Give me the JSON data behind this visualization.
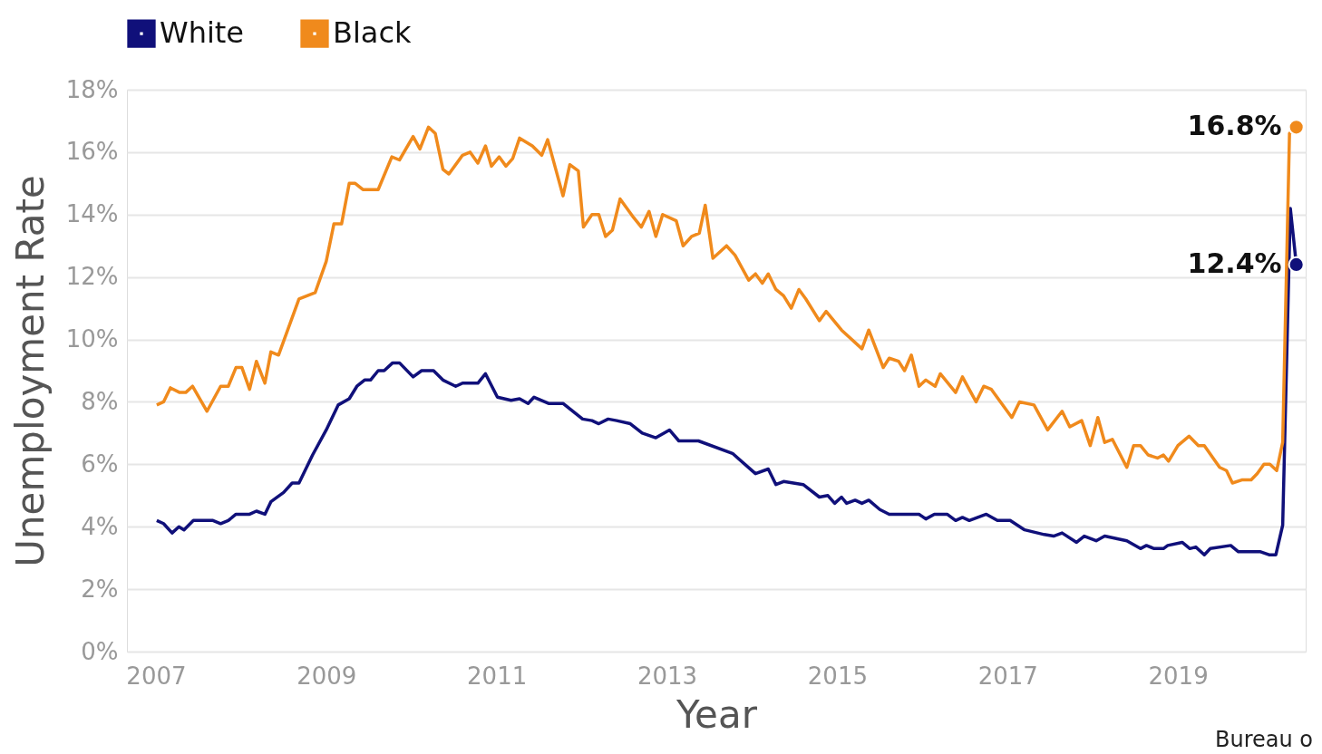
{
  "chart_data": {
    "type": "line",
    "xlabel": "Year",
    "ylabel": "Unemployment Rate",
    "xlim": [
      2006.66,
      2020.5
    ],
    "xticks": [
      2007,
      2009,
      2011,
      2013,
      2015,
      2017,
      2019
    ],
    "ylim": [
      0,
      18
    ],
    "yticks": [
      {
        "value": 0,
        "label": "0%"
      },
      {
        "value": 2,
        "label": "2%"
      },
      {
        "value": 4,
        "label": "4%"
      },
      {
        "value": 6,
        "label": "6%"
      },
      {
        "value": 8,
        "label": "8%"
      },
      {
        "value": 10,
        "label": "10%"
      },
      {
        "value": 12,
        "label": "12%"
      },
      {
        "value": 14,
        "label": "14%"
      },
      {
        "value": 16,
        "label": "16%"
      },
      {
        "value": 18,
        "label": "18%"
      }
    ],
    "grid": "y",
    "legend": "top",
    "marker": "none",
    "line_style": "solid",
    "series": [
      {
        "name": "White",
        "color": "#10107a",
        "x": [
          2007.01,
          2007.09,
          2007.19,
          2007.27,
          2007.33,
          2007.44,
          2007.53,
          2007.67,
          2007.76,
          2007.85,
          2007.94,
          2008.1,
          2008.18,
          2008.28,
          2008.35,
          2008.5,
          2008.6,
          2008.68,
          2008.84,
          2009.0,
          2009.14,
          2009.27,
          2009.36,
          2009.45,
          2009.52,
          2009.61,
          2009.68,
          2009.78,
          2009.86,
          2010.02,
          2010.12,
          2010.26,
          2010.37,
          2010.52,
          2010.6,
          2010.78,
          2010.87,
          2011.01,
          2011.17,
          2011.27,
          2011.37,
          2011.44,
          2011.61,
          2011.78,
          2012.01,
          2012.12,
          2012.2,
          2012.31,
          2012.41,
          2012.57,
          2012.71,
          2012.87,
          2013.03,
          2013.14,
          2013.37,
          2013.77,
          2014.04,
          2014.19,
          2014.28,
          2014.37,
          2014.6,
          2014.79,
          2014.89,
          2014.97,
          2015.05,
          2015.11,
          2015.21,
          2015.29,
          2015.37,
          2015.5,
          2015.61,
          2015.96,
          2016.04,
          2016.14,
          2016.29,
          2016.39,
          2016.47,
          2016.55,
          2016.75,
          2016.88,
          2017.03,
          2017.2,
          2017.43,
          2017.54,
          2017.64,
          2017.81,
          2017.9,
          2018.04,
          2018.14,
          2018.4,
          2018.56,
          2018.63,
          2018.72,
          2018.83,
          2018.88,
          2019.05,
          2019.14,
          2019.21,
          2019.31,
          2019.38,
          2019.62,
          2019.71,
          2019.97,
          2020.07,
          2020.15,
          2020.23,
          2020.32,
          2020.39
        ],
        "values": [
          4.2,
          4.1,
          3.8,
          4.0,
          3.9,
          4.2,
          4.2,
          4.2,
          4.1,
          4.2,
          4.4,
          4.4,
          4.5,
          4.4,
          4.8,
          5.1,
          5.4,
          5.4,
          6.3,
          7.1,
          7.9,
          8.1,
          8.5,
          8.7,
          8.7,
          9.0,
          9.0,
          9.25,
          9.25,
          8.8,
          9.0,
          9.0,
          8.7,
          8.5,
          8.6,
          8.6,
          8.9,
          8.15,
          8.05,
          8.1,
          7.95,
          8.15,
          7.95,
          7.95,
          7.45,
          7.4,
          7.3,
          7.45,
          7.4,
          7.3,
          7.0,
          6.85,
          7.1,
          6.75,
          6.75,
          6.35,
          5.7,
          5.85,
          5.35,
          5.45,
          5.35,
          4.95,
          5.0,
          4.75,
          4.95,
          4.75,
          4.85,
          4.75,
          4.85,
          4.55,
          4.4,
          4.4,
          4.25,
          4.4,
          4.4,
          4.2,
          4.3,
          4.2,
          4.4,
          4.2,
          4.2,
          3.9,
          3.75,
          3.7,
          3.8,
          3.5,
          3.7,
          3.55,
          3.7,
          3.55,
          3.3,
          3.4,
          3.3,
          3.3,
          3.4,
          3.5,
          3.3,
          3.35,
          3.1,
          3.3,
          3.4,
          3.2,
          3.2,
          3.1,
          3.1,
          4.05,
          14.2,
          12.4
        ]
      },
      {
        "name": "Black",
        "color": "#f08a1c",
        "x": [
          2007.01,
          2007.09,
          2007.17,
          2007.28,
          2007.35,
          2007.43,
          2007.6,
          2007.76,
          2007.85,
          2007.94,
          2008.01,
          2008.1,
          2008.18,
          2008.28,
          2008.35,
          2008.44,
          2008.68,
          2008.87,
          2009.0,
          2009.09,
          2009.18,
          2009.27,
          2009.34,
          2009.43,
          2009.61,
          2009.77,
          2009.86,
          2010.02,
          2010.1,
          2010.2,
          2010.28,
          2010.37,
          2010.44,
          2010.6,
          2010.69,
          2010.78,
          2010.87,
          2010.94,
          2011.03,
          2011.11,
          2011.19,
          2011.27,
          2011.42,
          2011.53,
          2011.6,
          2011.78,
          2011.86,
          2011.96,
          2012.02,
          2012.12,
          2012.2,
          2012.28,
          2012.36,
          2012.45,
          2012.61,
          2012.7,
          2012.79,
          2012.87,
          2012.95,
          2013.11,
          2013.19,
          2013.29,
          2013.38,
          2013.45,
          2013.54,
          2013.7,
          2013.8,
          2013.96,
          2014.04,
          2014.12,
          2014.19,
          2014.28,
          2014.37,
          2014.46,
          2014.55,
          2014.63,
          2014.79,
          2014.87,
          2015.05,
          2015.29,
          2015.37,
          2015.54,
          2015.61,
          2015.72,
          2015.79,
          2015.87,
          2015.96,
          2016.04,
          2016.15,
          2016.21,
          2016.39,
          2016.47,
          2016.63,
          2016.72,
          2016.81,
          2017.05,
          2017.14,
          2017.31,
          2017.47,
          2017.64,
          2017.73,
          2017.87,
          2017.97,
          2018.06,
          2018.14,
          2018.23,
          2018.4,
          2018.48,
          2018.56,
          2018.65,
          2018.76,
          2018.83,
          2018.89,
          2019.0,
          2019.13,
          2019.24,
          2019.31,
          2019.49,
          2019.57,
          2019.64,
          2019.75,
          2019.86,
          2019.93,
          2020.01,
          2020.08,
          2020.16,
          2020.23,
          2020.31,
          2020.39
        ],
        "values": [
          7.9,
          8.0,
          8.45,
          8.3,
          8.3,
          8.5,
          7.7,
          8.5,
          8.5,
          9.1,
          9.1,
          8.4,
          9.3,
          8.6,
          9.6,
          9.5,
          11.3,
          11.5,
          12.5,
          13.7,
          13.7,
          15.0,
          15.0,
          14.8,
          14.8,
          15.85,
          15.75,
          16.5,
          16.1,
          16.8,
          16.6,
          15.45,
          15.3,
          15.9,
          16.0,
          15.65,
          16.2,
          15.55,
          15.85,
          15.55,
          15.8,
          16.45,
          16.2,
          15.9,
          16.4,
          14.6,
          15.6,
          15.4,
          13.6,
          14.0,
          14.0,
          13.3,
          13.5,
          14.5,
          13.9,
          13.6,
          14.1,
          13.3,
          14.0,
          13.8,
          13.0,
          13.3,
          13.4,
          14.3,
          12.6,
          13.0,
          12.7,
          11.9,
          12.1,
          11.8,
          12.1,
          11.6,
          11.4,
          11.0,
          11.6,
          11.3,
          10.6,
          10.9,
          10.3,
          9.7,
          10.3,
          9.1,
          9.4,
          9.3,
          9.0,
          9.5,
          8.5,
          8.7,
          8.5,
          8.9,
          8.3,
          8.8,
          8.0,
          8.5,
          8.4,
          7.5,
          8.0,
          7.9,
          7.1,
          7.7,
          7.2,
          7.4,
          6.6,
          7.5,
          6.7,
          6.8,
          5.9,
          6.6,
          6.6,
          6.3,
          6.2,
          6.3,
          6.1,
          6.6,
          6.9,
          6.6,
          6.6,
          5.9,
          5.8,
          5.4,
          5.5,
          5.5,
          5.7,
          6.0,
          6.0,
          5.8,
          6.7,
          16.6,
          16.8
        ]
      }
    ],
    "annotations": [
      {
        "text": "16.8%",
        "x": 2020.39,
        "y": 16.8
      },
      {
        "text": "12.4%",
        "x": 2020.39,
        "y": 12.4
      },
      "Bureau o"
    ]
  }
}
